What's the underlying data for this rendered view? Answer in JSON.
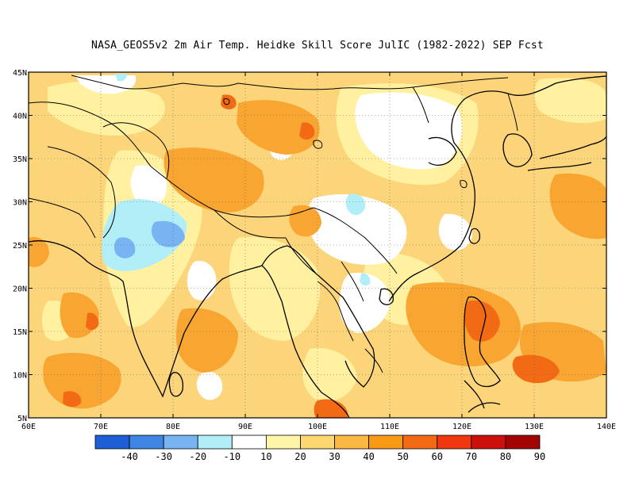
{
  "title": "NASA_GEOS5v2  2m Air Temp. Heidke Skill Score JulIC (1982-2022) SEP Fcst",
  "lon_labels": [
    "60E",
    "70E",
    "80E",
    "90E",
    "100E",
    "110E",
    "120E",
    "130E",
    "140E"
  ],
  "lat_labels": [
    "45N",
    "40N",
    "35N",
    "30N",
    "25N",
    "20N",
    "15N",
    "10N",
    "5N"
  ],
  "colorbar": {
    "colors": [
      "#1f5fd6",
      "#3f86e4",
      "#78b4f2",
      "#b2eef8",
      "#ffffff",
      "#fff5a8",
      "#fdd870",
      "#fcb845",
      "#f99a16",
      "#f26b14",
      "#f03810",
      "#cc100c",
      "#a30505"
    ],
    "labels": [
      "-40",
      "-30",
      "-20",
      "-10",
      "10",
      "20",
      "30",
      "40",
      "50",
      "60",
      "70",
      "80",
      "90"
    ]
  },
  "map": {
    "lon_range": [
      60,
      140
    ],
    "lat_range": [
      5,
      45
    ],
    "background_color": "#fcd57a",
    "grid": "dotted"
  }
}
